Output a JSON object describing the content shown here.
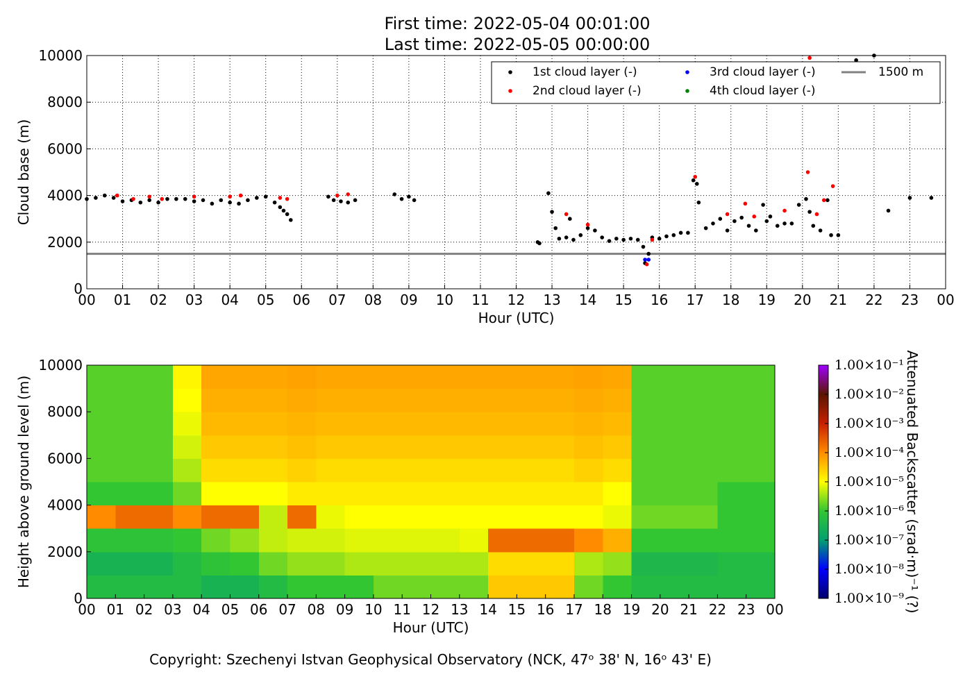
{
  "chart_data": [
    {
      "type": "scatter",
      "title": "First time: 2022-05-04 00:01:00",
      "subtitle": "Last time: 2022-05-05 00:00:00",
      "x_label": "Hour (UTC)",
      "y_label": "Cloud base (m)",
      "xlim": [
        0,
        24
      ],
      "ylim": [
        0,
        10000
      ],
      "xticks": [
        {
          "value": 0,
          "label": "00"
        },
        {
          "value": 1,
          "label": "01"
        },
        {
          "value": 2,
          "label": "02"
        },
        {
          "value": 3,
          "label": "03"
        },
        {
          "value": 4,
          "label": "04"
        },
        {
          "value": 5,
          "label": "05"
        },
        {
          "value": 6,
          "label": "06"
        },
        {
          "value": 7,
          "label": "07"
        },
        {
          "value": 8,
          "label": "08"
        },
        {
          "value": 9,
          "label": "09"
        },
        {
          "value": 10,
          "label": "10"
        },
        {
          "value": 11,
          "label": "11"
        },
        {
          "value": 12,
          "label": "12"
        },
        {
          "value": 13,
          "label": "13"
        },
        {
          "value": 14,
          "label": "14"
        },
        {
          "value": 15,
          "label": "15"
        },
        {
          "value": 16,
          "label": "16"
        },
        {
          "value": 17,
          "label": "17"
        },
        {
          "value": 18,
          "label": "18"
        },
        {
          "value": 19,
          "label": "19"
        },
        {
          "value": 20,
          "label": "20"
        },
        {
          "value": 21,
          "label": "21"
        },
        {
          "value": 22,
          "label": "22"
        },
        {
          "value": 23,
          "label": "23"
        },
        {
          "value": 24,
          "label": "00"
        }
      ],
      "yticks": [
        0,
        2000,
        4000,
        6000,
        8000,
        10000
      ],
      "grid": true,
      "legend": "upper right",
      "series": [
        {
          "name": "1st cloud layer (-)",
          "color": "#000000",
          "x": [
            0.0,
            0.25,
            0.5,
            0.75,
            1.0,
            1.25,
            1.5,
            1.75,
            2.0,
            2.25,
            2.5,
            2.75,
            3.0,
            3.25,
            3.5,
            3.75,
            4.0,
            4.25,
            4.5,
            4.75,
            5.0,
            5.25,
            5.4,
            5.5,
            5.6,
            5.7,
            6.75,
            6.9,
            7.1,
            7.3,
            7.5,
            8.6,
            8.8,
            9.0,
            9.15,
            12.6,
            12.65,
            12.9,
            13.0,
            13.1,
            13.2,
            13.4,
            13.5,
            13.6,
            13.8,
            14.0,
            14.2,
            14.4,
            14.6,
            14.8,
            15.0,
            15.2,
            15.4,
            15.55,
            15.6,
            15.7,
            15.8,
            16.0,
            16.2,
            16.4,
            16.6,
            16.8,
            16.95,
            17.05,
            17.1,
            17.3,
            17.5,
            17.7,
            17.9,
            18.1,
            18.3,
            18.5,
            18.7,
            18.9,
            19.0,
            19.1,
            19.3,
            19.5,
            19.7,
            19.9,
            20.1,
            20.2,
            20.3,
            20.5,
            20.7,
            20.8,
            21.0,
            21.5,
            22.0,
            22.4,
            23.0,
            23.6
          ],
          "values": [
            3850,
            3900,
            4000,
            3900,
            3750,
            3800,
            3700,
            3800,
            3700,
            3850,
            3850,
            3850,
            3750,
            3800,
            3650,
            3800,
            3700,
            3650,
            3800,
            3900,
            3950,
            3700,
            3500,
            3350,
            3200,
            2950,
            3950,
            3800,
            3750,
            3700,
            3800,
            4050,
            3850,
            3950,
            3800,
            2000,
            1950,
            4100,
            3300,
            2600,
            2150,
            2200,
            3000,
            2100,
            2300,
            2600,
            2500,
            2200,
            2050,
            2150,
            2100,
            2150,
            2100,
            1800,
            1100,
            1500,
            2200,
            2150,
            2250,
            2300,
            2400,
            2400,
            4650,
            4500,
            3700,
            2600,
            2800,
            3000,
            2500,
            2900,
            3050,
            2700,
            2500,
            3600,
            2900,
            3100,
            2700,
            2800,
            2800,
            3600,
            3850,
            3300,
            2700,
            2500,
            3800,
            2300,
            2300,
            9800,
            10000,
            3350,
            3900,
            3900
          ]
        },
        {
          "name": "2nd cloud layer (-)",
          "color": "#ff0000",
          "x": [
            0.85,
            1.3,
            1.75,
            2.1,
            3.0,
            4.0,
            4.3,
            5.4,
            5.6,
            7.0,
            7.3,
            13.4,
            14.0,
            15.65,
            15.8,
            17.0,
            17.9,
            18.4,
            18.65,
            19.5,
            20.15,
            20.2,
            20.4,
            20.6,
            20.85
          ],
          "values": [
            4000,
            3850,
            3950,
            3850,
            3950,
            3950,
            4000,
            3900,
            3850,
            4000,
            4050,
            3200,
            2750,
            1050,
            2100,
            4800,
            3200,
            3650,
            3100,
            3350,
            5000,
            9900,
            3200,
            3800,
            4400
          ]
        },
        {
          "name": "3rd cloud layer (-)",
          "color": "#0000ff",
          "x": [
            15.6,
            15.7
          ],
          "values": [
            1250,
            1250
          ]
        },
        {
          "name": "4th cloud layer (-)",
          "color": "#008000",
          "x": [],
          "values": []
        }
      ],
      "reference_line": {
        "name": "1500 m",
        "value": 1500,
        "color": "#808080"
      }
    },
    {
      "type": "heatmap",
      "x_label": "Hour (UTC)",
      "y_label": "Height above ground level (m)",
      "xlim": [
        0,
        24
      ],
      "ylim": [
        0,
        10000
      ],
      "xticks": [
        {
          "value": 0,
          "label": "00"
        },
        {
          "value": 1,
          "label": "01"
        },
        {
          "value": 2,
          "label": "02"
        },
        {
          "value": 3,
          "label": "03"
        },
        {
          "value": 4,
          "label": "04"
        },
        {
          "value": 5,
          "label": "05"
        },
        {
          "value": 6,
          "label": "06"
        },
        {
          "value": 7,
          "label": "07"
        },
        {
          "value": 8,
          "label": "08"
        },
        {
          "value": 9,
          "label": "09"
        },
        {
          "value": 10,
          "label": "10"
        },
        {
          "value": 11,
          "label": "11"
        },
        {
          "value": 12,
          "label": "12"
        },
        {
          "value": 13,
          "label": "13"
        },
        {
          "value": 14,
          "label": "14"
        },
        {
          "value": 15,
          "label": "15"
        },
        {
          "value": 16,
          "label": "16"
        },
        {
          "value": 17,
          "label": "17"
        },
        {
          "value": 18,
          "label": "18"
        },
        {
          "value": 19,
          "label": "19"
        },
        {
          "value": 20,
          "label": "20"
        },
        {
          "value": 21,
          "label": "21"
        },
        {
          "value": 22,
          "label": "22"
        },
        {
          "value": 23,
          "label": "23"
        },
        {
          "value": 24,
          "label": "00"
        }
      ],
      "yticks": [
        0,
        2000,
        4000,
        6000,
        8000,
        10000
      ],
      "x_bins": [
        0,
        1,
        2,
        3,
        4,
        5,
        6,
        7,
        8,
        9,
        10,
        11,
        12,
        13,
        14,
        15,
        16,
        17,
        18,
        19,
        20,
        21,
        22,
        23,
        24
      ],
      "y_bins": [
        0,
        1000,
        2000,
        3000,
        4000,
        5000,
        6000,
        7000,
        8000,
        9000,
        10000
      ],
      "values": [
        [
          5e-07,
          5e-07,
          5e-07,
          5e-07,
          3e-07,
          3e-07,
          5e-07,
          1e-06,
          1e-06,
          1e-06,
          2e-06,
          2e-06,
          2e-06,
          2e-06,
          3e-05,
          3e-05,
          3e-05,
          2e-06,
          1e-06,
          5e-07,
          5e-07,
          5e-07,
          5e-07,
          5e-07
        ],
        [
          3e-07,
          3e-07,
          3e-07,
          5e-07,
          8e-07,
          1e-06,
          2e-06,
          3e-06,
          3e-06,
          4e-06,
          4e-06,
          4e-06,
          4e-06,
          4e-06,
          2e-05,
          2e-05,
          2e-05,
          4e-06,
          3e-06,
          4e-07,
          4e-07,
          4e-07,
          5e-07,
          5e-07
        ],
        [
          8e-07,
          8e-07,
          8e-07,
          1e-06,
          2e-06,
          3e-06,
          5e-06,
          6e-06,
          6e-06,
          7e-06,
          7e-06,
          7e-06,
          7e-06,
          8e-06,
          0.0002,
          0.0002,
          0.0002,
          0.0001,
          5e-05,
          1e-06,
          1e-06,
          1e-06,
          1e-06,
          1e-06
        ],
        [
          0.0001,
          0.0002,
          0.0002,
          0.0001,
          0.0002,
          0.0002,
          5e-06,
          0.0002,
          8e-06,
          1e-05,
          1e-05,
          1e-05,
          1e-05,
          1e-05,
          1e-05,
          1e-05,
          1e-05,
          1e-05,
          8e-06,
          2e-06,
          2e-06,
          2e-06,
          1e-06,
          1e-06
        ],
        [
          1e-06,
          1e-06,
          1e-06,
          2e-06,
          1e-05,
          1e-05,
          1e-05,
          1.5e-05,
          1.5e-05,
          1.5e-05,
          1.5e-05,
          1.5e-05,
          1.5e-05,
          1.5e-05,
          1.5e-05,
          1.5e-05,
          1.5e-05,
          1.5e-05,
          1e-05,
          1.5e-06,
          1.5e-06,
          1.5e-06,
          1e-06,
          1e-06
        ],
        [
          1.5e-06,
          1.5e-06,
          1.5e-06,
          4e-06,
          2e-05,
          2e-05,
          2e-05,
          2.5e-05,
          2e-05,
          2e-05,
          2e-05,
          2e-05,
          2e-05,
          2e-05,
          2e-05,
          2e-05,
          2e-05,
          2.5e-05,
          2e-05,
          1.5e-06,
          1.5e-06,
          1.5e-06,
          1.5e-06,
          1.5e-06
        ],
        [
          1.5e-06,
          1.5e-06,
          1.5e-06,
          6e-06,
          3e-05,
          3e-05,
          3e-05,
          3.5e-05,
          3e-05,
          3e-05,
          3e-05,
          3e-05,
          3e-05,
          3e-05,
          3e-05,
          3e-05,
          3e-05,
          3.5e-05,
          3e-05,
          1.5e-06,
          1.5e-06,
          1.5e-06,
          1.5e-06,
          1.5e-06
        ],
        [
          1.5e-06,
          1.5e-06,
          1.5e-06,
          8e-06,
          4e-05,
          4e-05,
          4e-05,
          4.5e-05,
          4e-05,
          4e-05,
          4e-05,
          4e-05,
          4e-05,
          4e-05,
          4e-05,
          4e-05,
          4e-05,
          4.5e-05,
          4e-05,
          1.5e-06,
          1.5e-06,
          1.5e-06,
          1.5e-06,
          1.5e-06
        ],
        [
          1.5e-06,
          1.5e-06,
          1.5e-06,
          1e-05,
          5e-05,
          5e-05,
          5e-05,
          5.5e-05,
          5e-05,
          5e-05,
          5e-05,
          5e-05,
          5e-05,
          5e-05,
          5e-05,
          5e-05,
          5e-05,
          5.5e-05,
          5e-05,
          1.5e-06,
          1.5e-06,
          1.5e-06,
          1.5e-06,
          1.5e-06
        ],
        [
          1.5e-06,
          1.5e-06,
          1.5e-06,
          1.2e-05,
          6e-05,
          6e-05,
          6e-05,
          6.5e-05,
          6e-05,
          6e-05,
          6e-05,
          6e-05,
          6e-05,
          6e-05,
          6e-05,
          6e-05,
          6e-05,
          6.5e-05,
          6e-05,
          1.5e-06,
          1.5e-06,
          1.5e-06,
          1.5e-06,
          1.5e-06
        ]
      ],
      "colorbar": {
        "label": "Attenuated Backscatter (srad·m)⁻¹ (?)",
        "log": true,
        "lim": [
          1e-09,
          0.1
        ],
        "ticks": [
          {
            "value": 1e-09,
            "label": "1.00×10⁻⁹"
          },
          {
            "value": 1e-08,
            "label": "1.00×10⁻⁸"
          },
          {
            "value": 1e-07,
            "label": "1.00×10⁻⁷"
          },
          {
            "value": 1e-06,
            "label": "1.00×10⁻⁶"
          },
          {
            "value": 1e-05,
            "label": "1.00×10⁻⁵"
          },
          {
            "value": 0.0001,
            "label": "1.00×10⁻⁴"
          },
          {
            "value": 0.001,
            "label": "1.00×10⁻³"
          },
          {
            "value": 0.01,
            "label": "1.00×10⁻²"
          },
          {
            "value": 0.1,
            "label": "1.00×10⁻¹"
          }
        ],
        "colormap": [
          "#00006a",
          "#0000ff",
          "#00a070",
          "#33c633",
          "#ffff00",
          "#ff8c00",
          "#c82000",
          "#5a1400",
          "#a000ff"
        ]
      }
    }
  ],
  "footer": "Copyright: Szechenyi Istvan Geophysical Observatory (NCK, 47ᵒ 38' N, 16ᵒ 43' E)"
}
